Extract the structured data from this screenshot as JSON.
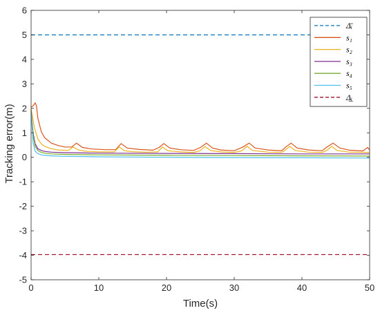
{
  "chart_data": {
    "type": "line",
    "xlabel": "Time(s)",
    "ylabel": "Tracking error(m)",
    "xlim": [
      0,
      50
    ],
    "ylim": [
      -5,
      6
    ],
    "xticks": [
      0,
      10,
      20,
      30,
      40,
      50
    ],
    "yticks": [
      -5,
      -4,
      -3,
      -2,
      -1,
      0,
      1,
      2,
      3,
      4,
      5,
      6
    ],
    "grid": false,
    "legend_position": "top-right",
    "legend": [
      {
        "label": "Δ̄ᵢ",
        "color": "#0072BD",
        "dashed": true
      },
      {
        "label": "s₁",
        "color": "#D95319",
        "dashed": false
      },
      {
        "label": "s₂",
        "color": "#EDB120",
        "dashed": false
      },
      {
        "label": "s₃",
        "color": "#7E2F8E",
        "dashed": false
      },
      {
        "label": "s₄",
        "color": "#77AC30",
        "dashed": false
      },
      {
        "label": "s₅",
        "color": "#4DBEEE",
        "dashed": false
      },
      {
        "label": "Δ̲ᵢ",
        "color": "#A2142F",
        "dashed": true
      }
    ],
    "series": [
      {
        "name": "Δ̄ᵢ",
        "color": "#0072BD",
        "dashed": true,
        "x": [
          0,
          50
        ],
        "y": [
          5,
          5
        ]
      },
      {
        "name": "s₁",
        "color": "#D95319",
        "x": [
          0,
          0.3,
          0.6,
          0.8,
          1.0,
          1.5,
          2,
          3,
          4,
          5,
          6,
          6.7,
          7.6,
          9,
          11,
          12.5,
          13.3,
          14.2,
          16,
          18,
          18.9,
          19.6,
          20.5,
          22,
          24,
          25,
          25.9,
          26.8,
          28,
          30,
          31.3,
          32.2,
          33.1,
          35,
          37,
          37.6,
          38.4,
          39.3,
          41,
          43,
          43.8,
          44.6,
          45.6,
          47,
          49,
          49.7,
          50
        ],
        "y": [
          2.05,
          2.1,
          2.22,
          2.1,
          1.6,
          1.05,
          0.8,
          0.58,
          0.48,
          0.42,
          0.42,
          0.58,
          0.4,
          0.34,
          0.31,
          0.31,
          0.56,
          0.38,
          0.32,
          0.29,
          0.4,
          0.56,
          0.38,
          0.31,
          0.28,
          0.4,
          0.58,
          0.38,
          0.3,
          0.27,
          0.42,
          0.58,
          0.38,
          0.3,
          0.27,
          0.42,
          0.58,
          0.38,
          0.3,
          0.27,
          0.44,
          0.58,
          0.38,
          0.29,
          0.26,
          0.4,
          0.3
        ]
      },
      {
        "name": "s₂",
        "color": "#EDB120",
        "x": [
          0,
          0.5,
          1,
          1.5,
          2,
          3,
          4,
          5.5,
          6.2,
          7,
          8,
          10,
          12.3,
          13,
          13.8,
          15,
          17,
          18.7,
          19.4,
          20.2,
          22,
          24,
          24.9,
          25.7,
          26.5,
          28,
          30,
          31.1,
          31.9,
          32.7,
          35,
          37,
          37.4,
          38.2,
          39,
          41,
          43,
          43.6,
          44.4,
          45.2,
          47,
          50
        ],
        "y": [
          2.0,
          1.2,
          0.75,
          0.55,
          0.45,
          0.35,
          0.3,
          0.28,
          0.42,
          0.3,
          0.25,
          0.22,
          0.22,
          0.42,
          0.27,
          0.23,
          0.21,
          0.22,
          0.42,
          0.27,
          0.22,
          0.2,
          0.26,
          0.44,
          0.28,
          0.22,
          0.2,
          0.26,
          0.45,
          0.28,
          0.21,
          0.2,
          0.27,
          0.45,
          0.28,
          0.21,
          0.2,
          0.27,
          0.45,
          0.28,
          0.21,
          0.2
        ]
      },
      {
        "name": "s₃",
        "color": "#7E2F8E",
        "x": [
          0,
          0.3,
          0.6,
          1,
          1.5,
          2,
          3,
          5,
          10,
          20,
          30,
          40,
          50
        ],
        "y": [
          1.9,
          1.0,
          0.55,
          0.35,
          0.28,
          0.24,
          0.21,
          0.19,
          0.17,
          0.16,
          0.15,
          0.14,
          0.14
        ]
      },
      {
        "name": "s₄",
        "color": "#77AC30",
        "x": [
          0,
          0.3,
          0.6,
          1,
          1.5,
          2,
          3,
          5,
          10,
          20,
          30,
          40,
          50
        ],
        "y": [
          1.9,
          0.9,
          0.45,
          0.28,
          0.2,
          0.17,
          0.14,
          0.12,
          0.1,
          0.08,
          0.07,
          0.06,
          0.05
        ]
      },
      {
        "name": "s₅",
        "color": "#4DBEEE",
        "x": [
          0,
          0.3,
          0.6,
          1,
          1.5,
          2,
          3,
          5,
          10,
          20,
          30,
          40,
          50
        ],
        "y": [
          1.85,
          0.6,
          0.25,
          0.15,
          0.1,
          0.08,
          0.06,
          0.04,
          0.02,
          0.0,
          -0.01,
          -0.02,
          -0.03
        ]
      },
      {
        "name": "Δ̲ᵢ",
        "color": "#A2142F",
        "dashed": true,
        "x": [
          0,
          50
        ],
        "y": [
          -3.97,
          -3.97
        ]
      }
    ]
  }
}
